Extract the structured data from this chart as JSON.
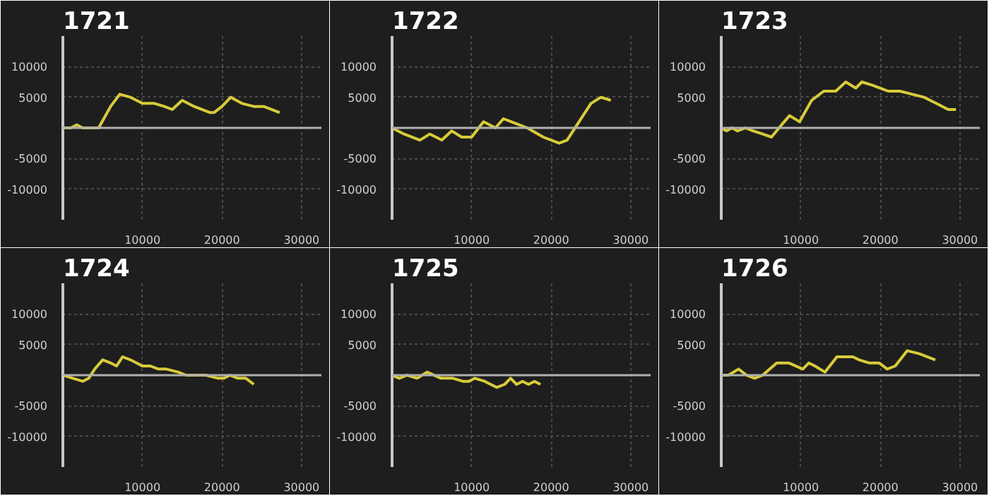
{
  "chart_data": [
    {
      "type": "line",
      "title": "1721",
      "xlim": [
        0,
        32500
      ],
      "ylim": [
        -15000,
        15000
      ],
      "xticks": [
        10000,
        20000,
        30000
      ],
      "yticks": [
        -10000,
        -5000,
        5000,
        10000
      ],
      "grid": true,
      "ref_lines": [
        {
          "axis": "y",
          "value": 0,
          "color": "#b0b0b0"
        }
      ],
      "series": [
        {
          "color": "#d8cb3a",
          "x": [
            0,
            1000,
            1750,
            2500,
            3500,
            4500,
            6000,
            7150,
            8500,
            10000,
            11500,
            12750,
            13750,
            15000,
            16500,
            18500,
            19000,
            20000,
            21100,
            22500,
            24000,
            25250,
            27250
          ],
          "values": [
            0,
            0,
            500,
            0,
            0,
            0,
            3500,
            5500,
            5000,
            4000,
            4000,
            3500,
            3000,
            4500,
            3500,
            2500,
            2500,
            3500,
            5000,
            4000,
            3500,
            3500,
            2500
          ]
        }
      ]
    },
    {
      "type": "line",
      "title": "1722",
      "xlim": [
        0,
        32500
      ],
      "ylim": [
        -15000,
        15000
      ],
      "xticks": [
        10000,
        20000,
        30000
      ],
      "yticks": [
        -10000,
        -5000,
        5000,
        10000
      ],
      "grid": true,
      "ref_lines": [
        {
          "axis": "y",
          "value": 0,
          "color": "#b0b0b0"
        }
      ],
      "series": [
        {
          "color": "#d8cb3a",
          "x": [
            0,
            1500,
            3500,
            4750,
            6250,
            7500,
            8750,
            10000,
            11500,
            13000,
            14000,
            15000,
            17000,
            19000,
            21000,
            22000,
            23500,
            25000,
            26250,
            27500
          ],
          "values": [
            0,
            -1000,
            -2000,
            -1000,
            -2000,
            -500,
            -1500,
            -1500,
            1000,
            0,
            1500,
            1000,
            0,
            -1500,
            -2500,
            -2000,
            1000,
            4000,
            5000,
            4500
          ]
        }
      ]
    },
    {
      "type": "line",
      "title": "1723",
      "xlim": [
        0,
        32500
      ],
      "ylim": [
        -15000,
        15000
      ],
      "xticks": [
        10000,
        20000,
        30000
      ],
      "yticks": [
        -10000,
        -5000,
        5000,
        10000
      ],
      "grid": true,
      "ref_lines": [
        {
          "axis": "y",
          "value": 0,
          "color": "#b0b0b0"
        }
      ],
      "series": [
        {
          "color": "#d8cb3a",
          "x": [
            0,
            650,
            1370,
            2020,
            3030,
            4040,
            5200,
            6310,
            7580,
            8590,
            9850,
            11360,
            12880,
            14390,
            15650,
            16920,
            17670,
            18940,
            19950,
            20960,
            22470,
            23990,
            25500,
            27020,
            28530,
            29500
          ],
          "values": [
            0,
            -500,
            0,
            -500,
            0,
            -500,
            -1000,
            -1500,
            500,
            2000,
            1000,
            4500,
            6000,
            6000,
            7500,
            6500,
            7500,
            7000,
            6500,
            6000,
            6000,
            5500,
            5000,
            4000,
            3000,
            3000
          ]
        }
      ]
    },
    {
      "type": "line",
      "title": "1724",
      "xlim": [
        0,
        32500
      ],
      "ylim": [
        -15000,
        15000
      ],
      "xticks": [
        10000,
        20000,
        30000
      ],
      "yticks": [
        -10000,
        -5000,
        5000,
        10000
      ],
      "grid": true,
      "ref_lines": [
        {
          "axis": "y",
          "value": 0,
          "color": "#b0b0b0"
        }
      ],
      "series": [
        {
          "color": "#d8cb3a",
          "x": [
            0,
            1250,
            2500,
            3250,
            4000,
            5000,
            6000,
            6750,
            7500,
            8500,
            10000,
            11000,
            12000,
            13000,
            14500,
            15500,
            17000,
            18000,
            19500,
            20250,
            21000,
            22000,
            23000,
            24000
          ],
          "values": [
            0,
            -500,
            -1000,
            -500,
            1000,
            2500,
            2000,
            1500,
            3000,
            2500,
            1500,
            1500,
            1000,
            1000,
            500,
            0,
            0,
            0,
            -500,
            -500,
            0,
            -500,
            -500,
            -1500
          ]
        }
      ]
    },
    {
      "type": "line",
      "title": "1725",
      "xlim": [
        0,
        32500
      ],
      "ylim": [
        -15000,
        15000
      ],
      "xticks": [
        10000,
        20000,
        30000
      ],
      "yticks": [
        -10000,
        -5000,
        5000,
        10000
      ],
      "grid": true,
      "ref_lines": [
        {
          "axis": "y",
          "value": 0,
          "color": "#b0b0b0"
        }
      ],
      "series": [
        {
          "color": "#d8cb3a",
          "x": [
            0,
            900,
            1900,
            3150,
            4400,
            6150,
            7650,
            8900,
            9650,
            10400,
            11650,
            13150,
            14150,
            14900,
            15650,
            16400,
            17150,
            17900,
            18650
          ],
          "values": [
            0,
            -500,
            0,
            -500,
            500,
            -500,
            -500,
            -1000,
            -1000,
            -500,
            -1000,
            -2000,
            -1500,
            -500,
            -1500,
            -1000,
            -1500,
            -1000,
            -1500
          ]
        }
      ]
    },
    {
      "type": "line",
      "title": "1726",
      "xlim": [
        0,
        32500
      ],
      "ylim": [
        -15000,
        15000
      ],
      "xticks": [
        10000,
        20000,
        30000
      ],
      "yticks": [
        -10000,
        -5000,
        5000,
        10000
      ],
      "grid": true,
      "ref_lines": [
        {
          "axis": "y",
          "value": 0,
          "color": "#b0b0b0"
        }
      ],
      "series": [
        {
          "color": "#d8cb3a",
          "x": [
            0,
            910,
            2170,
            3180,
            4190,
            5200,
            6970,
            7730,
            8480,
            10250,
            11010,
            11770,
            13030,
            14540,
            15800,
            16560,
            17320,
            18580,
            19840,
            20860,
            21870,
            23380,
            24890,
            26900
          ],
          "values": [
            0,
            0,
            1000,
            0,
            -500,
            0,
            2000,
            2000,
            2000,
            1000,
            2000,
            1500,
            500,
            3000,
            3000,
            3000,
            2500,
            2000,
            2000,
            1000,
            1500,
            4000,
            3500,
            2500
          ]
        }
      ]
    }
  ]
}
